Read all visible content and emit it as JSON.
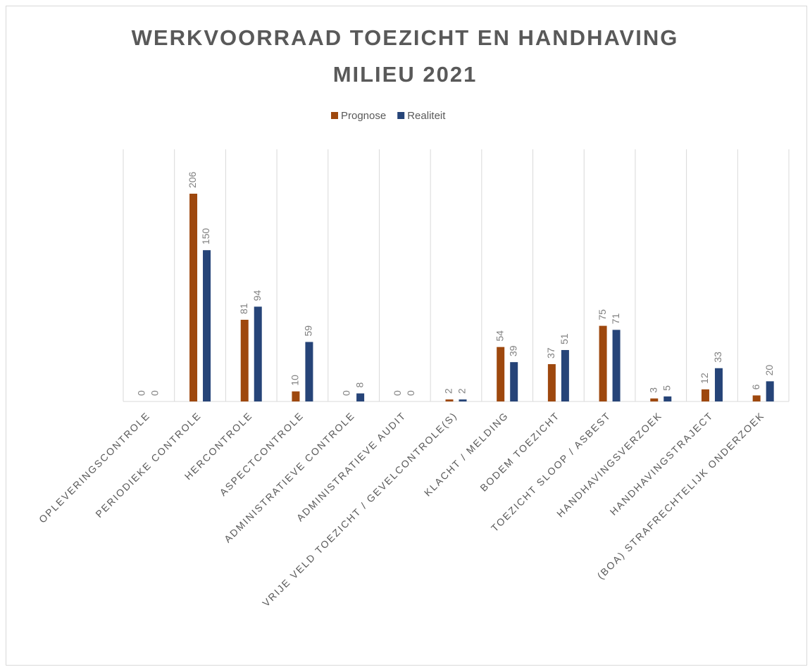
{
  "chart_data": {
    "type": "bar",
    "title": "WERKVOORRAAD TOEZICHT EN HANDHAVING MILIEU 2021",
    "categories": [
      "OPLEVERINGSCONTROLE",
      "PERIODIEKE CONTROLE",
      "HERCONTROLE",
      "ASPECTCONTROLE",
      "ADMINISTRATIEVE CONTROLE",
      "ADMINISTRATIEVE AUDIT",
      "VRIJE VELD TOEZICHT / GEVELCONTROLE(S)",
      "KLACHT / MELDING",
      "BODEM TOEZICHT",
      "TOEZICHT SLOOP / ASBEST",
      "HANDHAVINGSVERZOEK",
      "HANDHAVINGSTRAJECT",
      "(BOA) STRAFRECHTELIJK ONDERZOEK"
    ],
    "series": [
      {
        "name": "Prognose",
        "color": "#9e480e",
        "values": [
          0,
          206,
          81,
          10,
          0,
          0,
          2,
          54,
          37,
          75,
          3,
          12,
          6
        ]
      },
      {
        "name": "Realiteit",
        "color": "#264478",
        "values": [
          0,
          150,
          94,
          59,
          8,
          0,
          2,
          39,
          51,
          71,
          5,
          33,
          20
        ]
      }
    ],
    "ylim": [
      0,
      250
    ],
    "legend": "top",
    "grid": "vertical"
  }
}
